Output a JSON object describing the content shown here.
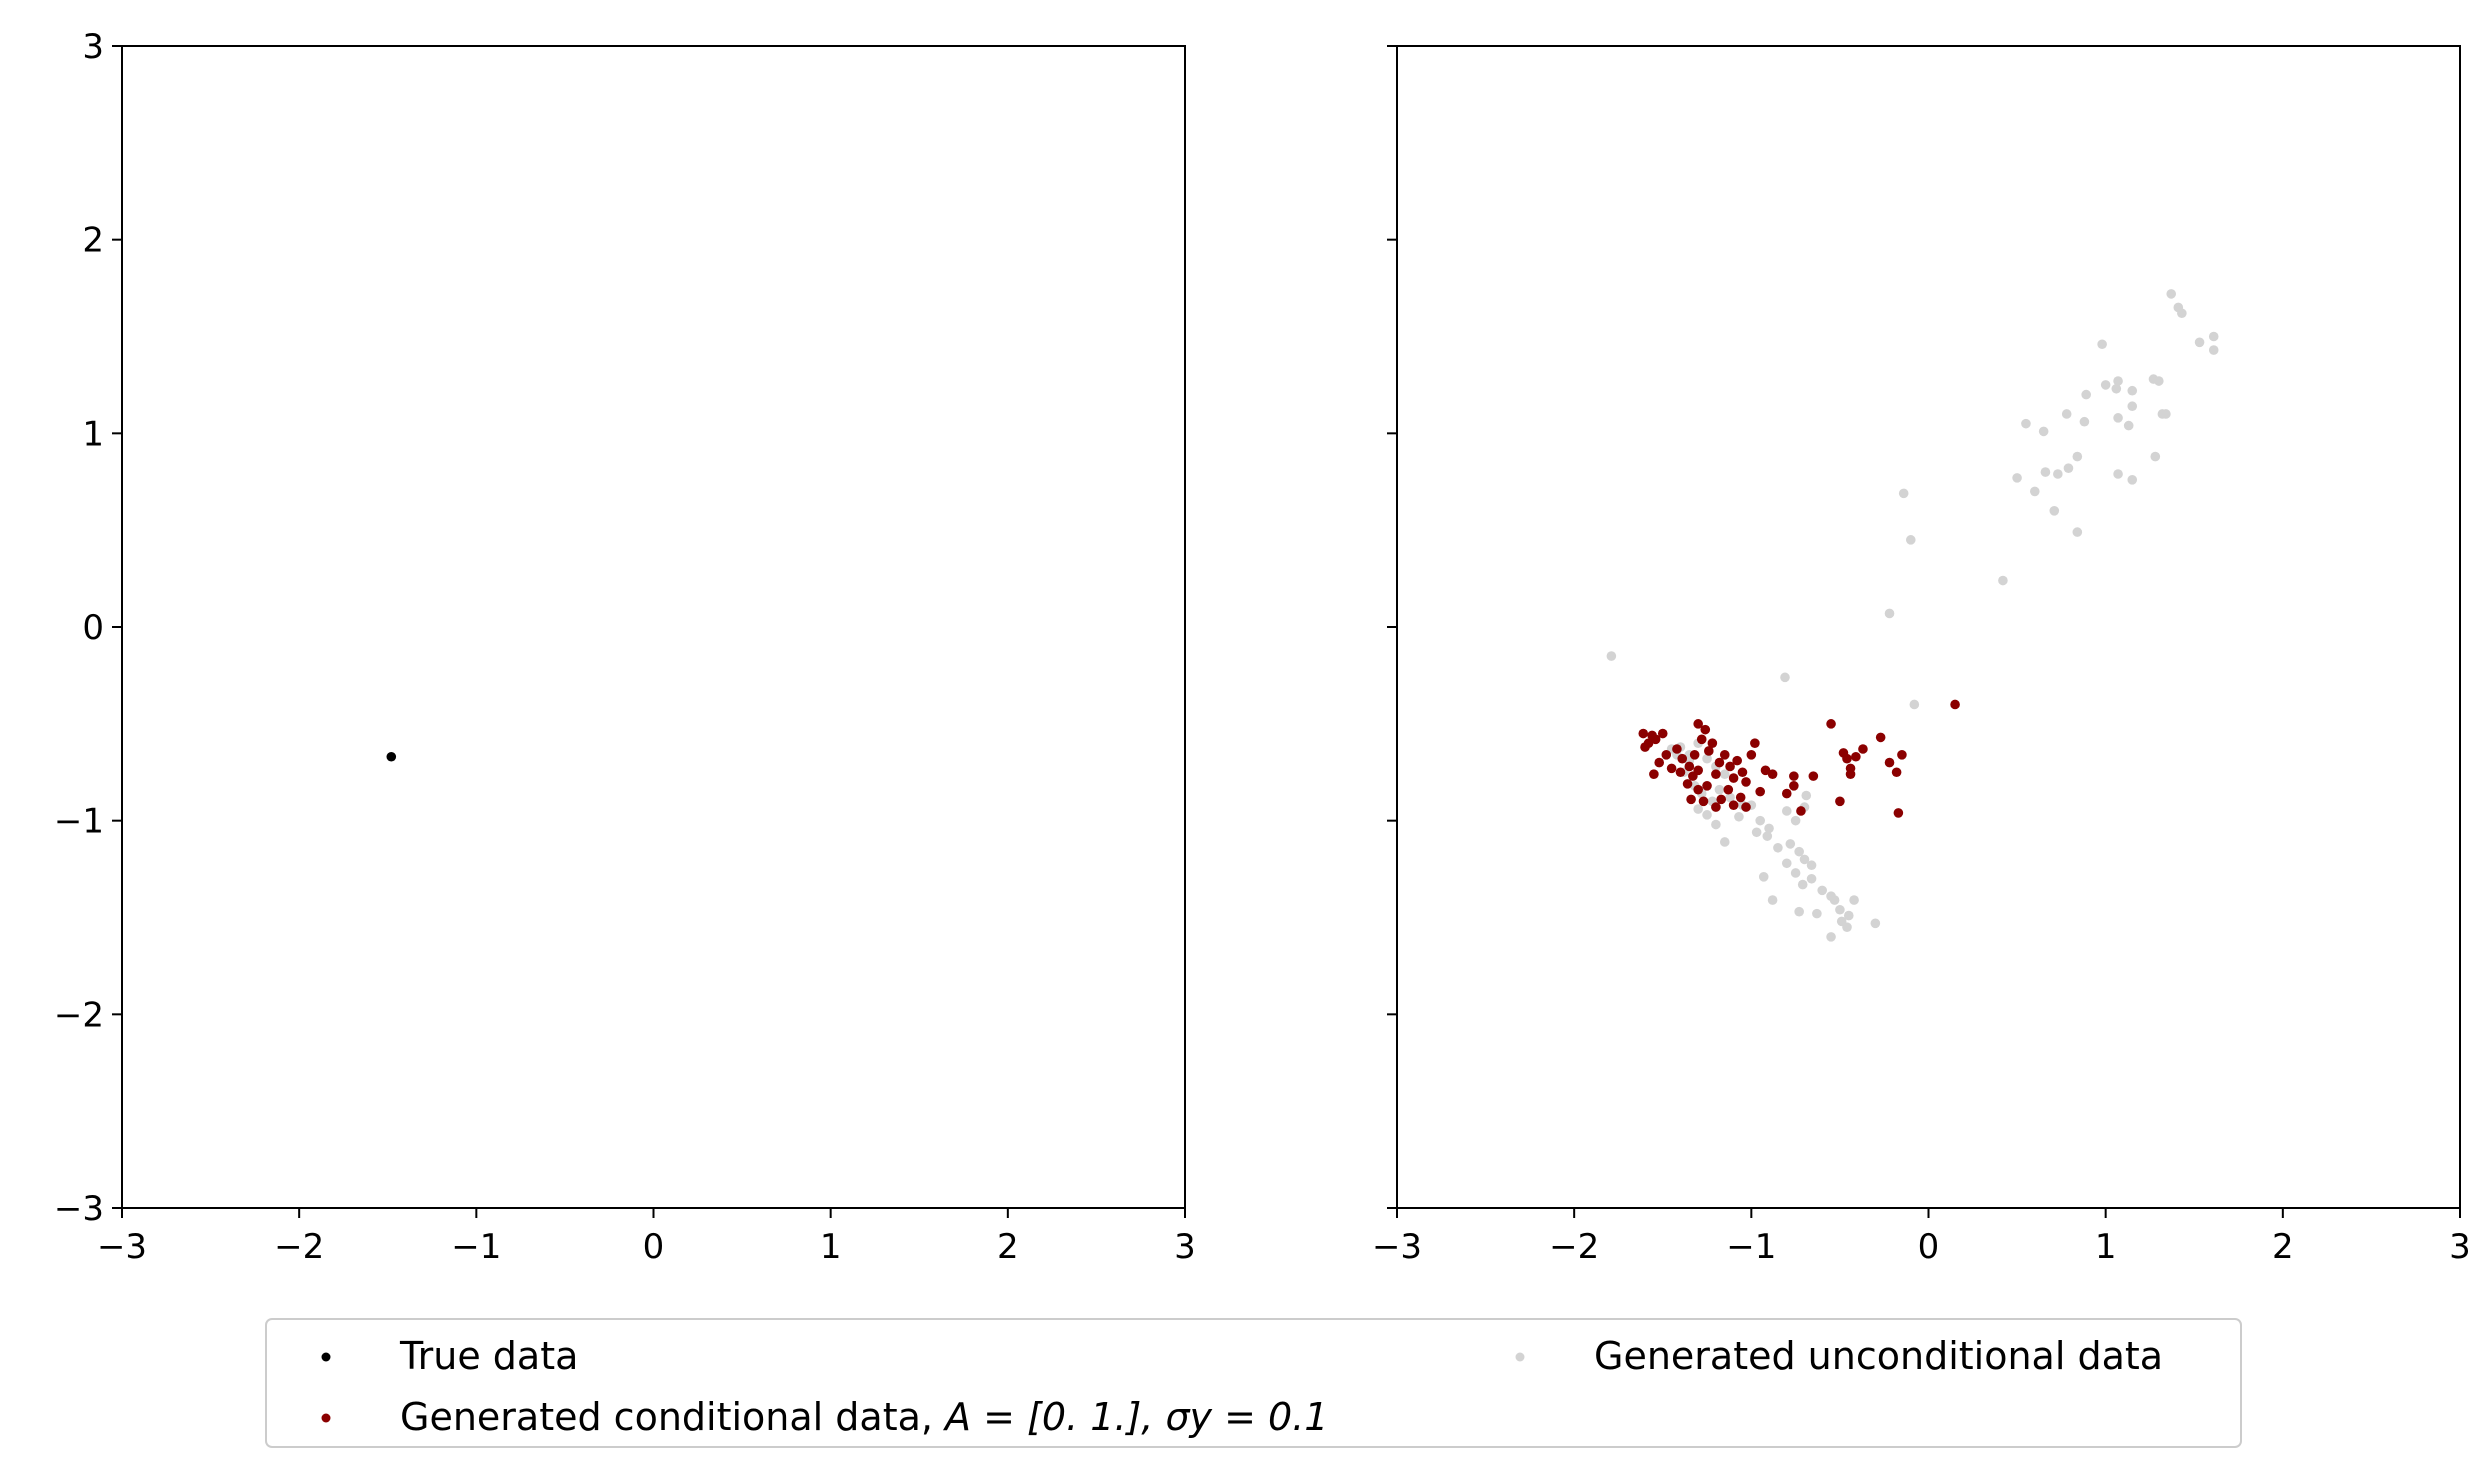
{
  "chart_data": [
    {
      "type": "scatter",
      "xlim": [
        -3,
        3
      ],
      "ylim": [
        -3,
        3
      ],
      "xticks": [
        "−3",
        "−2",
        "−1",
        "0",
        "1",
        "2",
        "3"
      ],
      "yticks": [
        "−3",
        "−2",
        "−1",
        "0",
        "1",
        "2",
        "3"
      ],
      "grid": false,
      "series": [
        {
          "name": "True data",
          "color": "#000000",
          "points": [
            [
              -1.48,
              -0.67
            ]
          ]
        }
      ]
    },
    {
      "type": "scatter",
      "xlim": [
        -3,
        3
      ],
      "ylim": [
        -3,
        3
      ],
      "xticks": [
        "−3",
        "−2",
        "−1",
        "0",
        "1",
        "2",
        "3"
      ],
      "yticks": [
        "−3",
        "−2",
        "−1",
        "0",
        "1",
        "2",
        "3"
      ],
      "grid": false,
      "series": [
        {
          "name": "Generated unconditional data",
          "color": "#d3d3d3",
          "points": [
            [
              1.37,
              1.72
            ],
            [
              1.41,
              1.65
            ],
            [
              1.43,
              1.62
            ],
            [
              1.53,
              1.47
            ],
            [
              1.61,
              1.5
            ],
            [
              1.61,
              1.43
            ],
            [
              0.98,
              1.46
            ],
            [
              1.0,
              1.25
            ],
            [
              1.07,
              1.27
            ],
            [
              1.06,
              1.23
            ],
            [
              1.15,
              1.22
            ],
            [
              1.27,
              1.28
            ],
            [
              1.3,
              1.27
            ],
            [
              0.89,
              1.2
            ],
            [
              1.15,
              1.14
            ],
            [
              1.07,
              1.08
            ],
            [
              1.34,
              1.1
            ],
            [
              1.32,
              1.1
            ],
            [
              0.78,
              1.1
            ],
            [
              0.88,
              1.06
            ],
            [
              0.55,
              1.05
            ],
            [
              0.65,
              1.01
            ],
            [
              1.13,
              1.04
            ],
            [
              0.5,
              0.77
            ],
            [
              0.66,
              0.8
            ],
            [
              0.73,
              0.79
            ],
            [
              0.79,
              0.82
            ],
            [
              0.84,
              0.88
            ],
            [
              1.07,
              0.79
            ],
            [
              1.15,
              0.76
            ],
            [
              1.28,
              0.88
            ],
            [
              0.6,
              0.7
            ],
            [
              0.71,
              0.6
            ],
            [
              0.84,
              0.49
            ],
            [
              -0.14,
              0.69
            ],
            [
              -0.1,
              0.45
            ],
            [
              0.42,
              0.24
            ],
            [
              -0.22,
              0.07
            ],
            [
              -1.79,
              -0.15
            ],
            [
              -0.81,
              -0.26
            ],
            [
              -0.08,
              -0.4
            ],
            [
              -1.45,
              -0.63
            ],
            [
              -1.4,
              -0.62
            ],
            [
              -1.35,
              -0.66
            ],
            [
              -1.3,
              -0.6
            ],
            [
              -1.25,
              -0.68
            ],
            [
              -1.2,
              -0.72
            ],
            [
              -1.15,
              -0.76
            ],
            [
              -1.38,
              -0.75
            ],
            [
              -1.32,
              -0.82
            ],
            [
              -1.28,
              -0.86
            ],
            [
              -1.22,
              -0.9
            ],
            [
              -1.18,
              -0.84
            ],
            [
              -1.12,
              -0.88
            ],
            [
              -1.05,
              -0.92
            ],
            [
              -1.25,
              -0.97
            ],
            [
              -1.3,
              -0.94
            ],
            [
              -1.2,
              -1.02
            ],
            [
              -1.15,
              -1.11
            ],
            [
              -1.0,
              -0.92
            ],
            [
              -0.95,
              -1.0
            ],
            [
              -0.9,
              -1.04
            ],
            [
              -0.97,
              -1.06
            ],
            [
              -0.91,
              -1.08
            ],
            [
              -0.85,
              -1.14
            ],
            [
              -0.8,
              -0.95
            ],
            [
              -0.75,
              -1.0
            ],
            [
              -0.7,
              -0.93
            ],
            [
              -0.69,
              -0.87
            ],
            [
              -0.78,
              -1.12
            ],
            [
              -0.73,
              -1.16
            ],
            [
              -0.7,
              -1.2
            ],
            [
              -0.66,
              -1.23
            ],
            [
              -0.8,
              -1.22
            ],
            [
              -0.75,
              -1.27
            ],
            [
              -0.66,
              -1.3
            ],
            [
              -0.71,
              -1.33
            ],
            [
              -0.6,
              -1.36
            ],
            [
              -0.55,
              -1.39
            ],
            [
              -0.53,
              -1.41
            ],
            [
              -0.5,
              -1.46
            ],
            [
              -0.42,
              -1.41
            ],
            [
              -0.45,
              -1.49
            ],
            [
              -0.49,
              -1.52
            ],
            [
              -0.3,
              -1.53
            ],
            [
              -0.55,
              -1.6
            ],
            [
              -0.46,
              -1.55
            ],
            [
              -0.93,
              -1.29
            ],
            [
              -0.88,
              -1.41
            ],
            [
              -0.73,
              -1.47
            ],
            [
              -0.63,
              -1.48
            ],
            [
              -1.07,
              -0.98
            ],
            [
              -1.35,
              -0.69
            ],
            [
              -1.42,
              -0.66
            ]
          ]
        },
        {
          "name": "Generated conditional data, A = [0. 1.], σy = 0.1",
          "color": "#8b0000",
          "points": [
            [
              -1.61,
              -0.55
            ],
            [
              -1.58,
              -0.6
            ],
            [
              -1.6,
              -0.62
            ],
            [
              -1.56,
              -0.56
            ],
            [
              -1.54,
              -0.58
            ],
            [
              -1.5,
              -0.55
            ],
            [
              -1.52,
              -0.7
            ],
            [
              -1.55,
              -0.76
            ],
            [
              -1.48,
              -0.66
            ],
            [
              -1.42,
              -0.63
            ],
            [
              -1.39,
              -0.68
            ],
            [
              -1.35,
              -0.72
            ],
            [
              -1.33,
              -0.77
            ],
            [
              -1.3,
              -0.5
            ],
            [
              -1.28,
              -0.58
            ],
            [
              -1.26,
              -0.53
            ],
            [
              -1.24,
              -0.64
            ],
            [
              -1.22,
              -0.6
            ],
            [
              -1.3,
              -0.74
            ],
            [
              -1.25,
              -0.82
            ],
            [
              -1.2,
              -0.76
            ],
            [
              -1.18,
              -0.7
            ],
            [
              -1.15,
              -0.66
            ],
            [
              -1.12,
              -0.72
            ],
            [
              -1.1,
              -0.78
            ],
            [
              -1.08,
              -0.69
            ],
            [
              -1.05,
              -0.75
            ],
            [
              -1.03,
              -0.8
            ],
            [
              -1.0,
              -0.66
            ],
            [
              -0.98,
              -0.6
            ],
            [
              -1.06,
              -0.88
            ],
            [
              -1.03,
              -0.93
            ],
            [
              -1.13,
              -0.84
            ],
            [
              -1.17,
              -0.89
            ],
            [
              -1.2,
              -0.93
            ],
            [
              -1.27,
              -0.9
            ],
            [
              -1.3,
              -0.84
            ],
            [
              -1.36,
              -0.81
            ],
            [
              -1.34,
              -0.89
            ],
            [
              -0.92,
              -0.74
            ],
            [
              -0.88,
              -0.76
            ],
            [
              -0.76,
              -0.77
            ],
            [
              -0.76,
              -0.82
            ],
            [
              -0.8,
              -0.86
            ],
            [
              -0.72,
              -0.95
            ],
            [
              -0.65,
              -0.77
            ],
            [
              -0.55,
              -0.5
            ],
            [
              -0.48,
              -0.65
            ],
            [
              -0.46,
              -0.68
            ],
            [
              -0.44,
              -0.73
            ],
            [
              -0.41,
              -0.67
            ],
            [
              -0.44,
              -0.76
            ],
            [
              -0.5,
              -0.9
            ],
            [
              -0.37,
              -0.63
            ],
            [
              -0.27,
              -0.57
            ],
            [
              -0.22,
              -0.7
            ],
            [
              -0.18,
              -0.75
            ],
            [
              -0.15,
              -0.66
            ],
            [
              -0.17,
              -0.96
            ],
            [
              0.15,
              -0.4
            ],
            [
              -1.4,
              -0.75
            ],
            [
              -1.45,
              -0.73
            ],
            [
              -1.32,
              -0.66
            ],
            [
              -1.1,
              -0.92
            ],
            [
              -0.95,
              -0.85
            ]
          ]
        }
      ]
    }
  ],
  "legend": {
    "placement": "bottom-center",
    "items": [
      {
        "text": "True data",
        "color": "#000000"
      },
      {
        "text": "Generated conditional data, ",
        "math": "A = [0. 1.], σy = 0.1",
        "color": "#8b0000"
      },
      {
        "text": "Generated unconditional data",
        "color": "#d3d3d3"
      }
    ]
  }
}
